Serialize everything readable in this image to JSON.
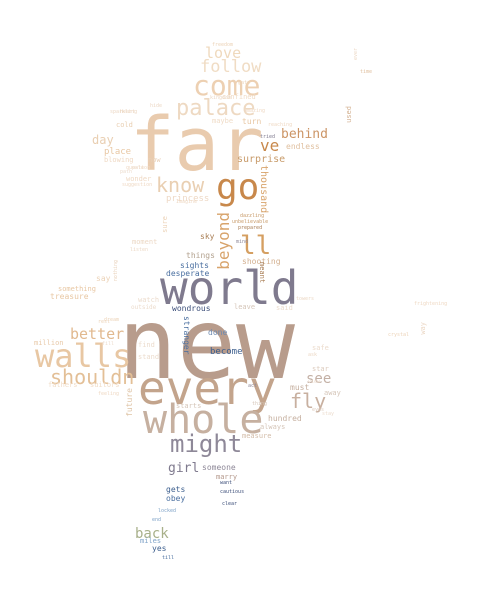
{
  "words": [
    {
      "text": "new",
      "color": "#b89c8c"
    },
    {
      "text": "far",
      "color": "#e9cbae"
    },
    {
      "text": "world",
      "color": "#7f7a8e"
    },
    {
      "text": "every",
      "color": "#c3a48c"
    },
    {
      "text": "whole",
      "color": "#c6b0a0"
    },
    {
      "text": "walls",
      "color": "#e8c7a3"
    },
    {
      "text": "go",
      "color": "#c8884b"
    },
    {
      "text": "come",
      "color": "#edd0b2"
    },
    {
      "text": "might",
      "color": "#8e8898"
    },
    {
      "text": "palace",
      "color": "#eed9c2"
    },
    {
      "text": "know",
      "color": "#e9cfb2"
    },
    {
      "text": "follow",
      "color": "#f0dcc4"
    },
    {
      "text": "love",
      "color": "#efd9bd"
    },
    {
      "text": "ll",
      "color": "#d59f61"
    },
    {
      "text": "fly",
      "color": "#c8b0a0"
    },
    {
      "text": "shouldn",
      "color": "#e3bf96"
    },
    {
      "text": "better",
      "color": "#e1b98f"
    },
    {
      "text": "beyond",
      "color": "#d8a46c"
    },
    {
      "text": "ve",
      "color": "#c8884b"
    },
    {
      "text": "behind",
      "color": "#cc9566"
    },
    {
      "text": "see",
      "color": "#c3b0a5"
    },
    {
      "text": "back",
      "color": "#a8b08a"
    },
    {
      "text": "girl",
      "color": "#7f7a8e"
    },
    {
      "text": "day",
      "color": "#e9cfb2"
    },
    {
      "text": "surprise",
      "color": "#c89b6a"
    },
    {
      "text": "thousand",
      "color": "#d8a46c"
    },
    {
      "text": "place",
      "color": "#e8c7a3"
    },
    {
      "text": "sights",
      "color": "#4a6fa0"
    },
    {
      "text": "desperate",
      "color": "#4a6fa0"
    },
    {
      "text": "wondrous",
      "color": "#3d4f7a"
    },
    {
      "text": "become",
      "color": "#3d5f8e"
    },
    {
      "text": "done",
      "color": "#6d8ab0"
    },
    {
      "text": "must",
      "color": "#c6b0a0"
    },
    {
      "text": "hundred",
      "color": "#c6b0a0"
    },
    {
      "text": "always",
      "color": "#d5c5b8"
    },
    {
      "text": "measure",
      "color": "#d3bca8"
    },
    {
      "text": "starts",
      "color": "#d5c5b8"
    },
    {
      "text": "future",
      "color": "#dfc4a6"
    },
    {
      "text": "million",
      "color": "#e8c9a8"
    },
    {
      "text": "fathers",
      "color": "#f0dcc7"
    },
    {
      "text": "suitors",
      "color": "#f0dcc7"
    },
    {
      "text": "treasure",
      "color": "#e8c7a3"
    },
    {
      "text": "something",
      "color": "#e8c7a3"
    },
    {
      "text": "say",
      "color": "#ecd3b8"
    },
    {
      "text": "moment",
      "color": "#ecd8c5"
    },
    {
      "text": "things",
      "color": "#b3a28f"
    },
    {
      "text": "sky",
      "color": "#a97e55"
    },
    {
      "text": "shooting",
      "color": "#d3b090"
    },
    {
      "text": "meant",
      "color": "#a97e55"
    },
    {
      "text": "princess",
      "color": "#eed9c6"
    },
    {
      "text": "sure",
      "color": "#ecd3b8"
    },
    {
      "text": "cold",
      "color": "#e9cfb2"
    },
    {
      "text": "blowing",
      "color": "#efd9c4"
    },
    {
      "text": "wonder",
      "color": "#efd9c4"
    },
    {
      "text": "now",
      "color": "#e8d0b8"
    },
    {
      "text": "confined",
      "color": "#f0dcc7"
    },
    {
      "text": "maybe",
      "color": "#f0dcc7"
    },
    {
      "text": "turn",
      "color": "#e8c7a3"
    },
    {
      "text": "endless",
      "color": "#e0c0a0"
    },
    {
      "text": "stranger",
      "color": "#4a6fa0"
    },
    {
      "text": "leave",
      "color": "#d5c5b8"
    },
    {
      "text": "said",
      "color": "#ecdccd"
    },
    {
      "text": "star",
      "color": "#dccbbd"
    },
    {
      "text": "away",
      "color": "#d5c5b8"
    },
    {
      "text": "safe",
      "color": "#ecdccd"
    },
    {
      "text": "someone",
      "color": "#8e8898"
    },
    {
      "text": "marry",
      "color": "#b3978a"
    },
    {
      "text": "gets",
      "color": "#3d5f8e"
    },
    {
      "text": "obey",
      "color": "#4a6fa0"
    },
    {
      "text": "miles",
      "color": "#7fa3c8"
    },
    {
      "text": "yes",
      "color": "#3d5f8e"
    },
    {
      "text": "way",
      "color": "#ecd8c5"
    },
    {
      "text": "used",
      "color": "#d3b090"
    },
    {
      "text": "find",
      "color": "#ecdccd"
    },
    {
      "text": "stand",
      "color": "#ecdccd"
    },
    {
      "text": "watch",
      "color": "#ecdccd"
    },
    {
      "text": "outside",
      "color": "#ecdccd"
    },
    {
      "text": "tried",
      "color": "#7f7a8e"
    },
    {
      "text": "amazing",
      "color": "#efd9c4"
    },
    {
      "text": "dazzling",
      "color": "#c89b6a"
    },
    {
      "text": "unbelievable",
      "color": "#c89b6a"
    },
    {
      "text": "prepared",
      "color": "#a97e55"
    },
    {
      "text": "cautious",
      "color": "#3d4f7a"
    },
    {
      "text": "clear",
      "color": "#3d4f7a"
    },
    {
      "text": "locked",
      "color": "#7fa3c8"
    },
    {
      "text": "end",
      "color": "#7fa3c8"
    },
    {
      "text": "till",
      "color": "#4a6fa0"
    },
    {
      "text": "want",
      "color": "#3d4f7a"
    },
    {
      "text": "crystal",
      "color": "#ecd3b8"
    },
    {
      "text": "time",
      "color": "#e0c0a0"
    },
    {
      "text": "ever",
      "color": "#ecd8c5"
    },
    {
      "text": "act",
      "color": "#8e8898"
    },
    {
      "text": "thing",
      "color": "#d5c5b8"
    },
    {
      "text": "mind",
      "color": "#8e8898"
    },
    {
      "text": "towers",
      "color": "#ecd8c5"
    },
    {
      "text": "freedom",
      "color": "#ecd3b8"
    },
    {
      "text": "kingdom",
      "color": "#ecd8c5"
    },
    {
      "text": "gate",
      "color": "#ecd3b8"
    },
    {
      "text": "suggestion",
      "color": "#efd9c4"
    },
    {
      "text": "reaching",
      "color": "#efd9c4"
    },
    {
      "text": "question",
      "color": "#efd9c4"
    },
    {
      "text": "Imagine",
      "color": "#efd9c4"
    },
    {
      "text": "heart",
      "color": "#efd9c4"
    },
    {
      "text": "feeling",
      "color": "#efd9c4"
    },
    {
      "text": "frightening",
      "color": "#efd9c4"
    },
    {
      "text": "listen",
      "color": "#ecd8c5"
    },
    {
      "text": "nothing",
      "color": "#e8d0b8"
    },
    {
      "text": "rest",
      "color": "#ecd3b8"
    },
    {
      "text": "sparkling",
      "color": "#ecd8c5"
    },
    {
      "text": "fill",
      "color": "#ecdccd"
    },
    {
      "text": "eyes",
      "color": "#dccbbd"
    },
    {
      "text": "ask",
      "color": "#ecd8c5"
    },
    {
      "text": "stay",
      "color": "#ecdccd"
    },
    {
      "text": "dream",
      "color": "#ecd3b8"
    },
    {
      "text": "hide",
      "color": "#ecd8c5"
    },
    {
      "text": "view",
      "color": "#ecdccd"
    },
    {
      "text": "pale",
      "color": "#ecd8c5"
    },
    {
      "text": "path",
      "color": "#ecdccd"
    }
  ]
}
